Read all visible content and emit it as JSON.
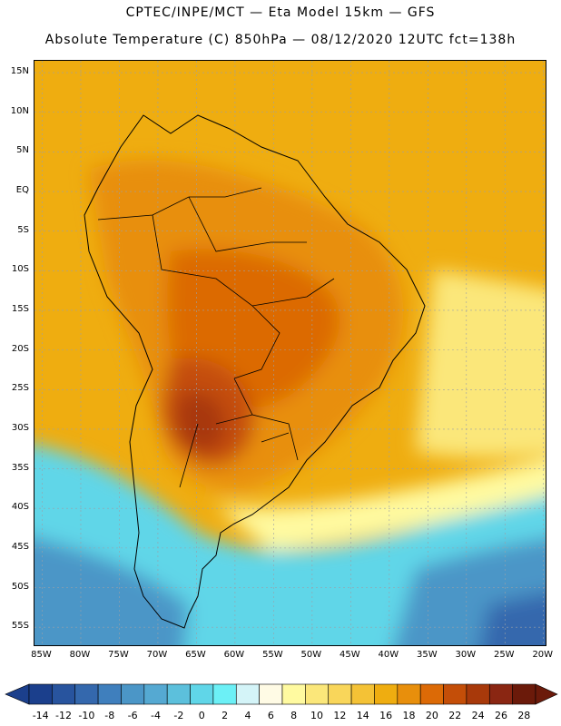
{
  "header": {
    "line1": "CPTEC/INPE/MCT —  Eta Model 15km — GFS",
    "line2": "Absolute Temperature (C) 850hPa — 08/12/2020 12UTC fct=138h"
  },
  "map": {
    "lat_labels": [
      "15N",
      "10N",
      "5N",
      "EQ",
      "5S",
      "10S",
      "15S",
      "20S",
      "25S",
      "30S",
      "35S",
      "40S",
      "45S",
      "50S",
      "55S"
    ],
    "lat_values": [
      15,
      10,
      5,
      0,
      -5,
      -10,
      -15,
      -20,
      -25,
      -30,
      -35,
      -40,
      -45,
      -50,
      -55
    ],
    "lon_labels": [
      "85W",
      "80W",
      "75W",
      "70W",
      "65W",
      "60W",
      "55W",
      "50W",
      "45W",
      "40W",
      "35W",
      "30W",
      "25W",
      "20W"
    ],
    "lon_values": [
      -85,
      -80,
      -75,
      -70,
      -65,
      -60,
      -55,
      -50,
      -45,
      -40,
      -35,
      -30,
      -25,
      -20
    ],
    "lon_range": [
      -86,
      -19.5
    ],
    "lat_range": [
      -57.5,
      16.5
    ]
  },
  "legend": {
    "labels": [
      "-14",
      "-12",
      "-10",
      "-8",
      "-6",
      "-4",
      "-2",
      "0",
      "2",
      "4",
      "6",
      "8",
      "10",
      "12",
      "14",
      "16",
      "18",
      "20",
      "22",
      "24",
      "26",
      "28"
    ],
    "colors": [
      "#1b3f8c",
      "#28549e",
      "#3468ad",
      "#3f7fbd",
      "#4b96c7",
      "#55a9d2",
      "#5cc0dc",
      "#60d6e8",
      "#6cf0f6",
      "#d4f4f8",
      "#fffbe5",
      "#fffaa0",
      "#fbe77a",
      "#f9d65a",
      "#f4c236",
      "#efad10",
      "#e88f0c",
      "#dc6a06",
      "#c44e08",
      "#a8390a",
      "#8a2612",
      "#6b1a0a"
    ]
  }
}
